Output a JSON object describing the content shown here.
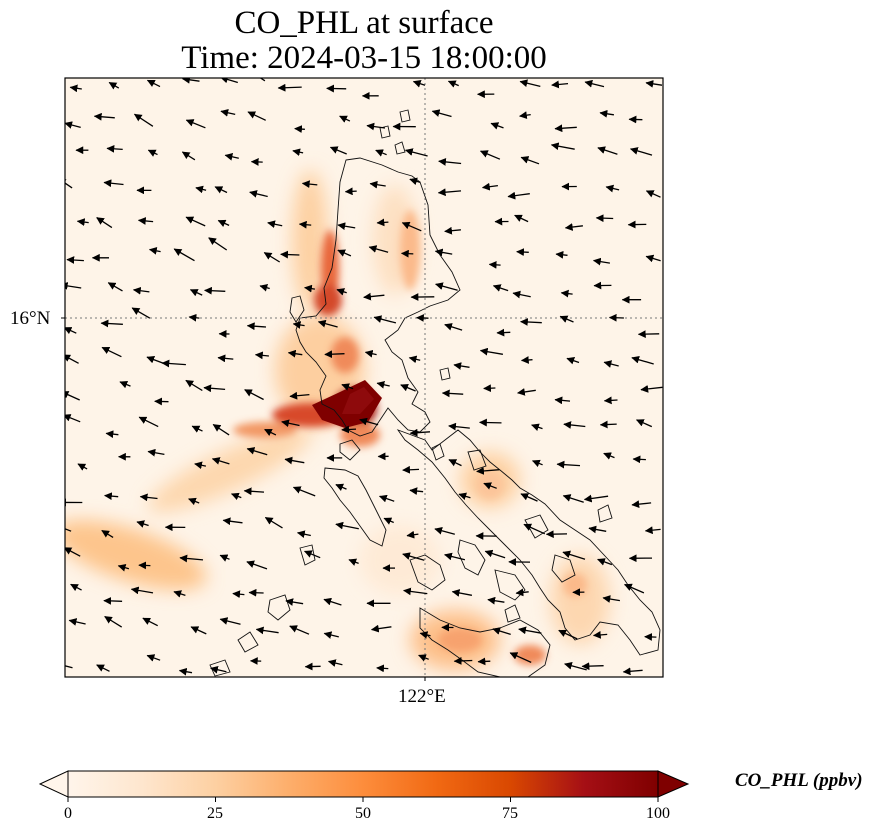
{
  "title": {
    "line1": "CO_PHL at surface",
    "line2": "Time: 2024-03-15 18:00:00"
  },
  "axes": {
    "lat_label": "16°N",
    "lon_label": "122°E",
    "gridlines": "dotted"
  },
  "colorbar": {
    "label": "CO_PHL (ppbv)",
    "ticks": [
      "0",
      "25",
      "50",
      "75",
      "100"
    ],
    "min": 0,
    "max": 100,
    "extend": "both",
    "cmap_colors": [
      "#fff5eb",
      "#fee6ce",
      "#fdd0a2",
      "#fdae6b",
      "#fd8d3c",
      "#f16913",
      "#d94801",
      "#a50f15",
      "#7f0000"
    ]
  },
  "map": {
    "field": "CO_PHL",
    "units": "ppbv",
    "wind_vectors": "shown",
    "coastlines": "shown",
    "background_color": "#fef4e8"
  }
}
